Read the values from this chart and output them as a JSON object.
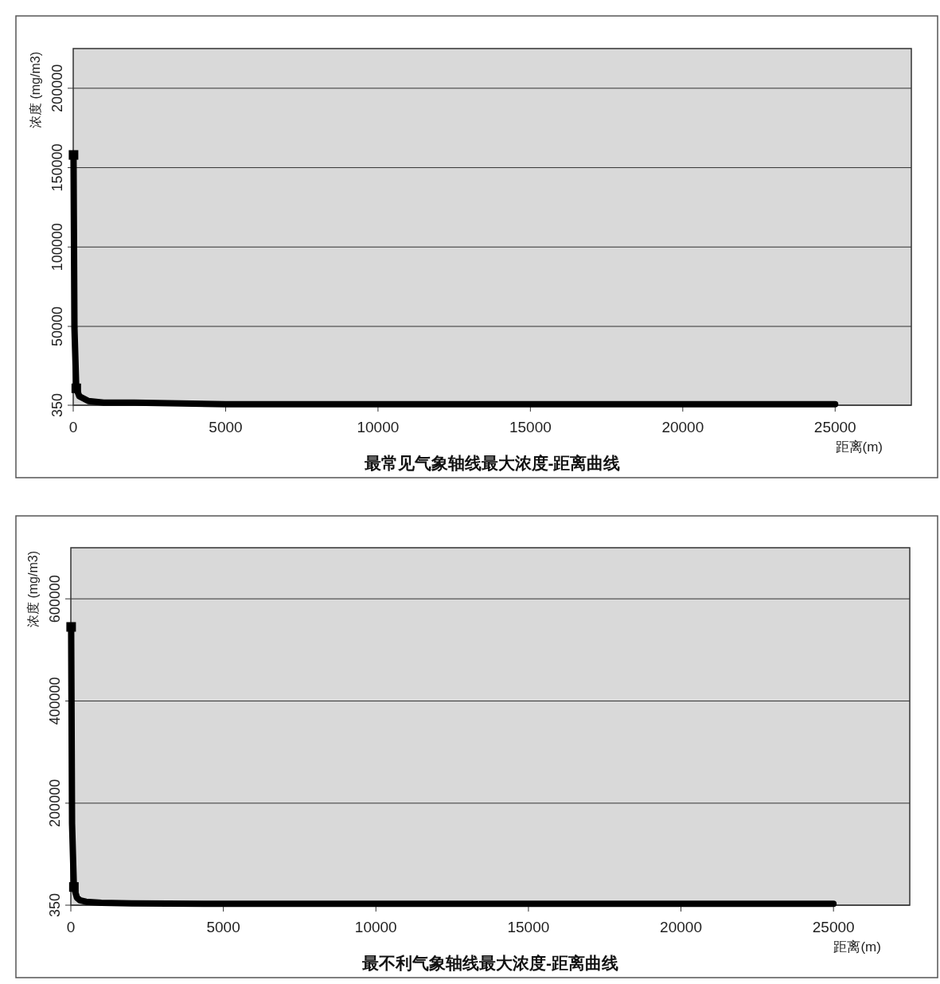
{
  "chart_data": [
    {
      "type": "line",
      "title": "最常见气象轴线最大浓度-距离曲线",
      "xlabel": "距离(m)",
      "ylabel": "浓度 (mg/m3)",
      "xlim": [
        0,
        27500
      ],
      "xticks": [
        0,
        5000,
        10000,
        15000,
        20000,
        25000
      ],
      "ylim": [
        350,
        225000
      ],
      "yticks": [
        {
          "value": 350,
          "label": "350"
        },
        50000,
        100000,
        150000,
        200000
      ],
      "grid": "y",
      "series": [
        {
          "color": "#000000",
          "line_style": "solid",
          "marker": "none",
          "x": [
            10,
            20,
            40,
            100,
            200,
            300,
            500,
            1000,
            2000,
            5000,
            10000,
            25000
          ],
          "values": [
            158000,
            120000,
            49000,
            11000,
            6000,
            5000,
            3000,
            2000,
            2000,
            1000,
            1000,
            1000
          ]
        },
        {
          "type": "scatter",
          "color": "#000000",
          "marker": "square",
          "x": [
            10,
            100
          ],
          "values": [
            158000,
            11000
          ]
        }
      ]
    },
    {
      "type": "line",
      "title": "最不利气象轴线最大浓度-距离曲线",
      "xlabel": "距离(m)",
      "ylabel": "浓度 (mg/m3)",
      "xlim": [
        0,
        27500
      ],
      "xticks": [
        0,
        5000,
        10000,
        15000,
        20000,
        25000
      ],
      "ylim": [
        350,
        700000
      ],
      "yticks": [
        {
          "value": 350,
          "label": "350"
        },
        200000,
        400000,
        600000
      ],
      "grid": "y",
      "series": [
        {
          "color": "#000000",
          "line_style": "solid",
          "marker": "none",
          "x": [
            10,
            20,
            40,
            100,
            200,
            300,
            500,
            1000,
            2000,
            5000,
            10000,
            25000
          ],
          "values": [
            545000,
            414000,
            160000,
            36000,
            15000,
            10000,
            7000,
            5000,
            4000,
            3000,
            3000,
            3000
          ]
        },
        {
          "type": "scatter",
          "color": "#000000",
          "marker": "square",
          "x": [
            10,
            100
          ],
          "values": [
            545000,
            36000
          ]
        }
      ]
    }
  ]
}
